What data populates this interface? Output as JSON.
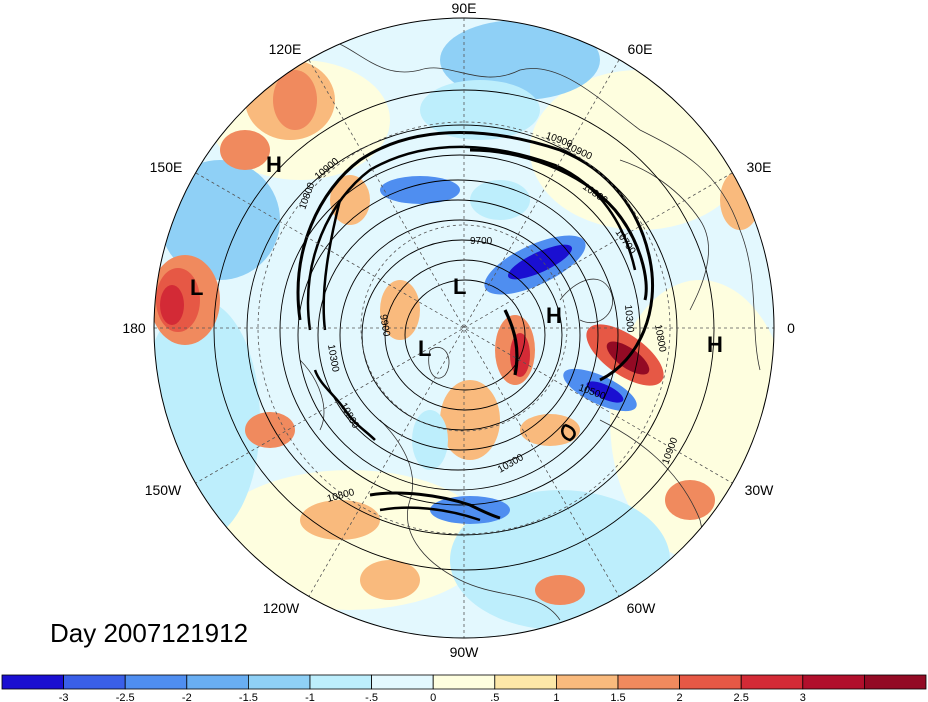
{
  "title": "Day 2007121912",
  "lon_labels": {
    "e90": "90E",
    "e120": "120E",
    "e60": "60E",
    "e150": "150E",
    "e30": "30E",
    "w180": "180",
    "e0": "0",
    "w150": "150W",
    "w30": "30W",
    "w120": "120W",
    "w60": "60W",
    "w90": "90W"
  },
  "contour_labels": [
    "10900",
    "10900",
    "10800",
    "10700",
    "9700",
    "10800",
    "10900",
    "10300",
    "10500",
    "10800",
    "10900",
    "10300",
    "10800",
    "10800",
    "10300",
    "9900"
  ],
  "pressure_centers": [
    {
      "label": "H"
    },
    {
      "label": "L"
    },
    {
      "label": "L"
    },
    {
      "label": "H"
    },
    {
      "label": "L"
    },
    {
      "label": "H"
    }
  ],
  "colorbar": {
    "colors": [
      "#1a0fd1",
      "#3a5fe8",
      "#4f8ef0",
      "#69aef2",
      "#8fd0f6",
      "#bdeefc",
      "#e3f8fe",
      "#fefedf",
      "#fde8a8",
      "#f9ba7d",
      "#f08a5e",
      "#e65845",
      "#d32a36",
      "#b10f2c",
      "#930a24"
    ],
    "labels": [
      "-3",
      "-2.5",
      "-2",
      "-1.5",
      "-1",
      "-.5",
      "0",
      ".5",
      "1",
      "1.5",
      "2",
      "2.5",
      "3"
    ]
  }
}
